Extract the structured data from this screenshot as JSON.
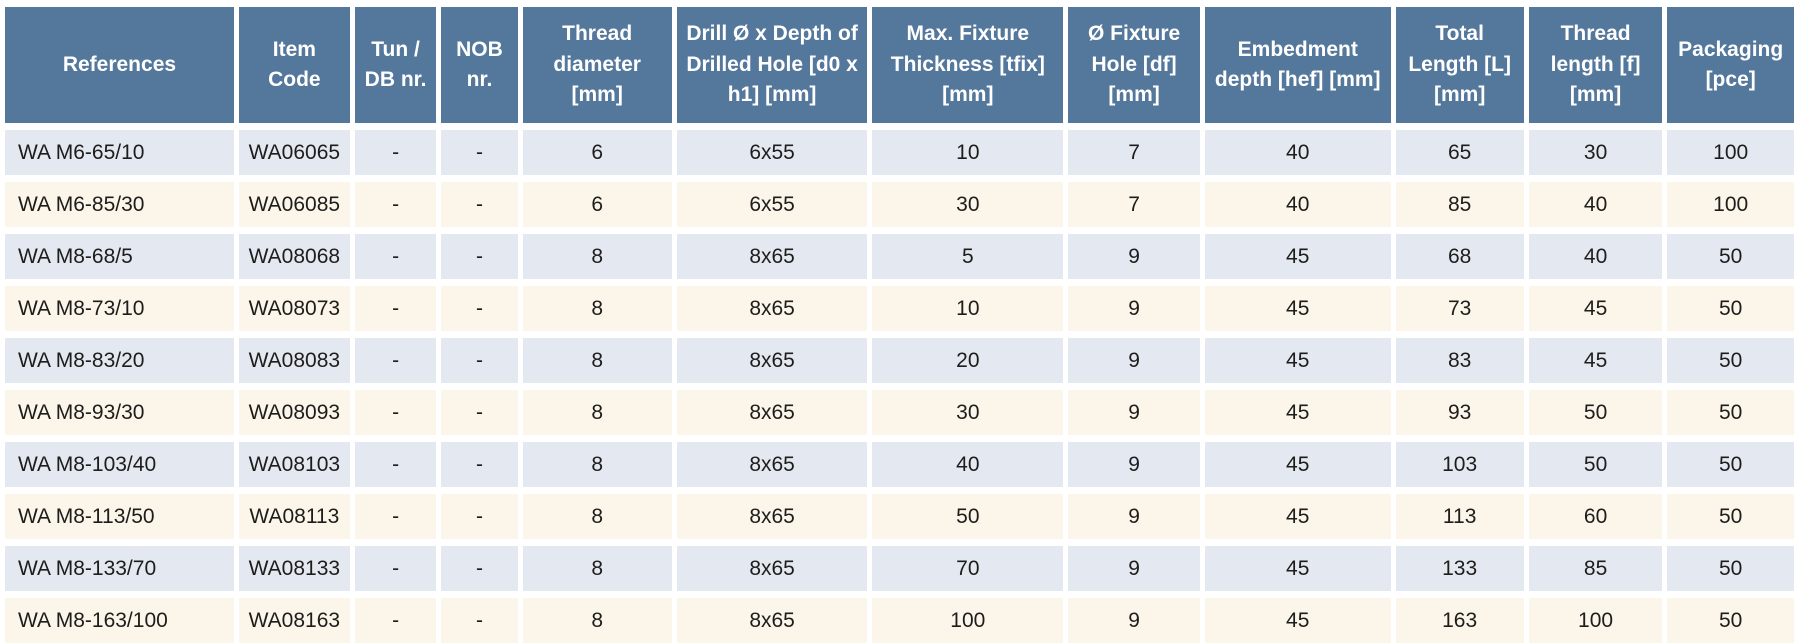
{
  "table": {
    "columns": [
      {
        "id": "references",
        "label": "References",
        "align": "left"
      },
      {
        "id": "item-code",
        "label": "Item Code",
        "align": "center"
      },
      {
        "id": "tun-db-nr",
        "label": "Tun / DB nr.",
        "align": "center"
      },
      {
        "id": "nob-nr",
        "label": "NOB nr.",
        "align": "center"
      },
      {
        "id": "thread-diameter",
        "label": "Thread diameter [mm]",
        "align": "center"
      },
      {
        "id": "drill-depth",
        "label": "Drill Ø x Depth of Drilled Hole [d0 x h1] [mm]",
        "align": "center"
      },
      {
        "id": "max-fixture-thickness",
        "label": "Max. Fixture Thickness [tfix] [mm]",
        "align": "center"
      },
      {
        "id": "fixture-hole-diameter",
        "label": "Ø Fixture Hole [df] [mm]",
        "align": "center"
      },
      {
        "id": "embedment-depth",
        "label": "Embedment depth [hef] [mm]",
        "align": "center"
      },
      {
        "id": "total-length",
        "label": "Total Length [L] [mm]",
        "align": "center"
      },
      {
        "id": "thread-length",
        "label": "Thread length [f] [mm]",
        "align": "center"
      },
      {
        "id": "packaging",
        "label": "Packaging [pce]",
        "align": "center"
      }
    ],
    "rows": [
      [
        "WA M6-65/10",
        "WA06065",
        "-",
        "-",
        "6",
        "6x55",
        "10",
        "7",
        "40",
        "65",
        "30",
        "100"
      ],
      [
        "WA M6-85/30",
        "WA06085",
        "-",
        "-",
        "6",
        "6x55",
        "30",
        "7",
        "40",
        "85",
        "40",
        "100"
      ],
      [
        "WA M8-68/5",
        "WA08068",
        "-",
        "-",
        "8",
        "8x65",
        "5",
        "9",
        "45",
        "68",
        "40",
        "50"
      ],
      [
        "WA M8-73/10",
        "WA08073",
        "-",
        "-",
        "8",
        "8x65",
        "10",
        "9",
        "45",
        "73",
        "45",
        "50"
      ],
      [
        "WA M8-83/20",
        "WA08083",
        "-",
        "-",
        "8",
        "8x65",
        "20",
        "9",
        "45",
        "83",
        "45",
        "50"
      ],
      [
        "WA M8-93/30",
        "WA08093",
        "-",
        "-",
        "8",
        "8x65",
        "30",
        "9",
        "45",
        "93",
        "50",
        "50"
      ],
      [
        "WA M8-103/40",
        "WA08103",
        "-",
        "-",
        "8",
        "8x65",
        "40",
        "9",
        "45",
        "103",
        "50",
        "50"
      ],
      [
        "WA M8-113/50",
        "WA08113",
        "-",
        "-",
        "8",
        "8x65",
        "50",
        "9",
        "45",
        "113",
        "60",
        "50"
      ],
      [
        "WA M8-133/70",
        "WA08133",
        "-",
        "-",
        "8",
        "8x65",
        "70",
        "9",
        "45",
        "133",
        "85",
        "50"
      ],
      [
        "WA M8-163/100",
        "WA08163",
        "-",
        "-",
        "8",
        "8x65",
        "100",
        "9",
        "45",
        "163",
        "100",
        "50"
      ]
    ]
  },
  "colors": {
    "header_bg": "#54779c",
    "header_text": "#ffffff",
    "row_alt_blue": "#e4e8f1",
    "row_alt_cream": "#fbf5ea",
    "cell_text": "#1d1d1b",
    "page_bg": "#ffffff"
  }
}
